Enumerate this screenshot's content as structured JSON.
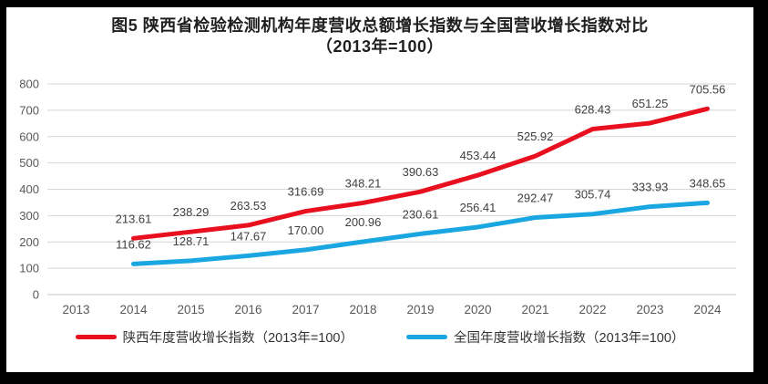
{
  "title": {
    "line1": "图5  陕西省检验检测机构年度营收总额增长指数与全国营收增长指数对比",
    "line2": "（2013年=100）"
  },
  "chart_data": {
    "type": "line",
    "title": "图5 陕西省检验检测机构年度营收总额增长指数与全国营收增长指数对比（2013年=100）",
    "x": [
      "2013",
      "2014",
      "2015",
      "2016",
      "2017",
      "2018",
      "2019",
      "2020",
      "2021",
      "2022",
      "2023",
      "2024"
    ],
    "series": [
      {
        "name": "陕西年度营收增长指数（2013年=100）",
        "color": "#e8101e",
        "values": [
          null,
          213.61,
          238.29,
          263.53,
          316.69,
          348.21,
          390.63,
          453.44,
          525.92,
          628.43,
          651.25,
          705.56
        ]
      },
      {
        "name": "全国年度营收增长指数（2013年=100）",
        "color": "#1aa7e1",
        "values": [
          null,
          116.62,
          128.71,
          147.67,
          170.0,
          200.96,
          230.61,
          256.41,
          292.47,
          305.74,
          333.93,
          348.65
        ]
      }
    ],
    "xlabel": "",
    "ylabel": "",
    "ylim": [
      0,
      800
    ],
    "ytick_step": 100,
    "yticks": [
      0,
      100,
      200,
      300,
      400,
      500,
      600,
      700,
      800
    ],
    "grid": true,
    "data_labels": true,
    "data_label_decimals": 2,
    "legend_position": "bottom"
  },
  "style_colors": {
    "grid_line": "#d6d6d6",
    "axis_base_line": "#c6c6c6",
    "axis_text": "#595959",
    "data_label_text": "#3f3f3f",
    "frame": "#000000",
    "background": "#ffffff"
  }
}
